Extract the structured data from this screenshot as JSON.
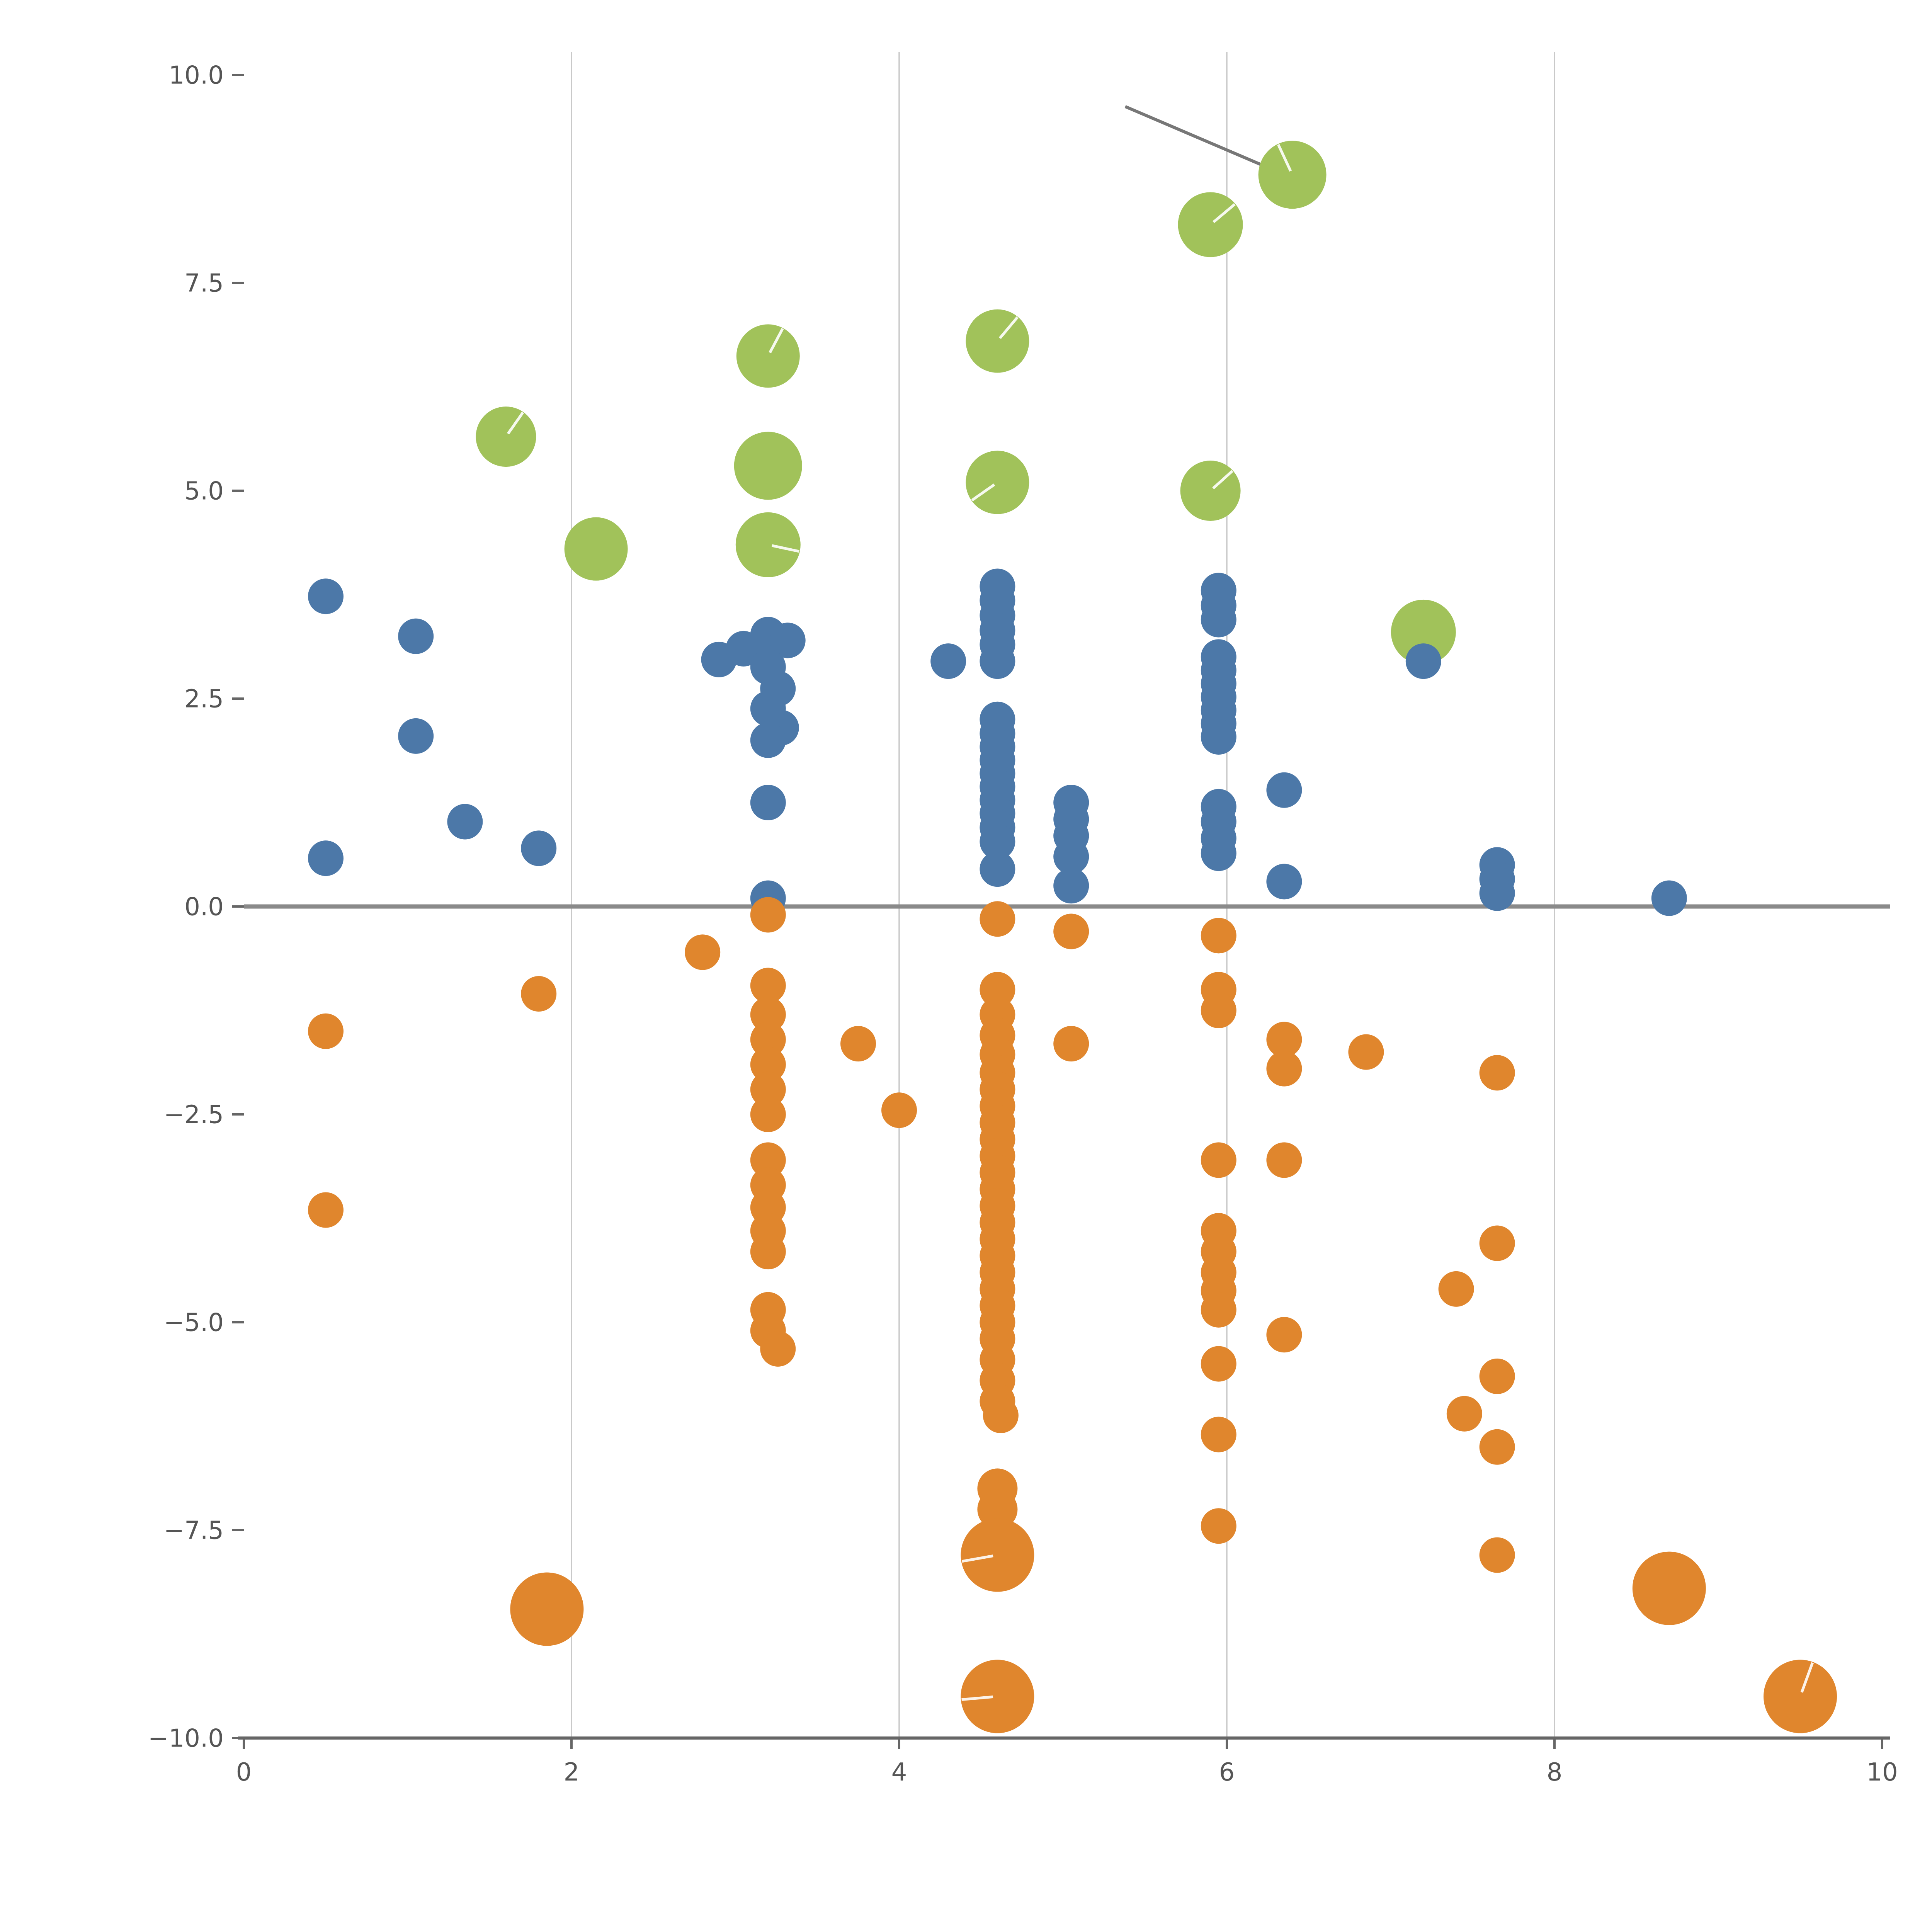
{
  "page": {
    "background": "#ffffff"
  },
  "chart_data": {
    "type": "scatter",
    "title": "",
    "xlabel": "",
    "ylabel": "",
    "xlim": [
      0,
      10
    ],
    "ylim": [
      -10,
      10
    ],
    "grid": "vertical-only",
    "legend": "none",
    "grid_x": [
      2,
      4,
      6,
      8
    ],
    "grid_color": "#c9c9c9",
    "axis_color": "#666666",
    "label_color": "#555555",
    "zero_line": {
      "y": 0,
      "color": "#8a8a8a"
    },
    "annotation_line": {
      "x1": 5.38,
      "y1": 9.62,
      "x2": 6.33,
      "y2": 8.82,
      "color": "#777777"
    },
    "x_ticks": [
      {
        "value": 0,
        "label": "0"
      },
      {
        "value": 2,
        "label": "2"
      },
      {
        "value": 4,
        "label": "4"
      },
      {
        "value": 6,
        "label": "6"
      },
      {
        "value": 8,
        "label": "8"
      },
      {
        "value": 10,
        "label": "10"
      }
    ],
    "y_ticks": [
      {
        "value": -10,
        "label": "−10.0"
      },
      {
        "value": -7.5,
        "label": "−7.5"
      },
      {
        "value": -5,
        "label": "−5.0"
      },
      {
        "value": -2.5,
        "label": "−2.5"
      },
      {
        "value": 0,
        "label": "0.0"
      },
      {
        "value": 2.5,
        "label": "2.5"
      },
      {
        "value": 5,
        "label": "5.0"
      },
      {
        "value": 7.5,
        "label": "7.5"
      },
      {
        "value": 10,
        "label": "10.0"
      }
    ],
    "series": [
      {
        "name": "green",
        "color": "#a1c25a",
        "default_r": 82,
        "points": [
          [
            6.4,
            8.8,
            88,
            115
          ],
          [
            5.9,
            8.2,
            84,
            40
          ],
          [
            4.6,
            6.8,
            82,
            50
          ],
          [
            3.2,
            6.62,
            82,
            62
          ],
          [
            1.6,
            5.65,
            78,
            55
          ],
          [
            3.2,
            5.3,
            88
          ],
          [
            4.6,
            5.1,
            82,
            215
          ],
          [
            5.9,
            5.0,
            78,
            42
          ],
          [
            2.15,
            4.3,
            82
          ],
          [
            3.2,
            4.35,
            84,
            -12
          ],
          [
            7.2,
            3.3,
            84
          ]
        ]
      },
      {
        "name": "blue",
        "color": "#4c78a8",
        "default_r": 46,
        "points": [
          [
            0.5,
            3.73
          ],
          [
            1.05,
            3.25
          ],
          [
            1.05,
            2.05
          ],
          [
            1.35,
            1.02
          ],
          [
            0.5,
            0.58
          ],
          [
            1.8,
            0.7
          ],
          [
            2.9,
            2.97
          ],
          [
            3.05,
            3.1
          ],
          [
            3.2,
            3.27
          ],
          [
            3.32,
            3.2
          ],
          [
            3.2,
            2.88
          ],
          [
            3.26,
            2.62
          ],
          [
            3.2,
            2.38
          ],
          [
            3.28,
            2.15
          ],
          [
            3.2,
            2.0
          ],
          [
            3.2,
            1.25
          ],
          [
            3.2,
            0.1
          ],
          [
            4.3,
            2.95
          ],
          [
            4.6,
            3.85
          ],
          [
            4.6,
            3.68
          ],
          [
            4.6,
            3.5
          ],
          [
            4.6,
            3.32
          ],
          [
            4.6,
            3.15
          ],
          [
            4.6,
            2.95
          ],
          [
            4.6,
            2.25
          ],
          [
            4.6,
            2.08
          ],
          [
            4.6,
            1.92
          ],
          [
            4.6,
            1.76
          ],
          [
            4.6,
            1.6
          ],
          [
            4.6,
            1.44
          ],
          [
            4.6,
            1.28
          ],
          [
            4.6,
            1.12
          ],
          [
            4.6,
            0.95
          ],
          [
            4.6,
            0.78
          ],
          [
            4.6,
            0.45
          ],
          [
            5.05,
            1.25
          ],
          [
            5.05,
            1.05
          ],
          [
            5.05,
            0.85
          ],
          [
            5.05,
            0.6
          ],
          [
            5.05,
            0.25
          ],
          [
            5.95,
            3.8
          ],
          [
            5.95,
            3.62
          ],
          [
            5.95,
            3.45
          ],
          [
            5.95,
            3.0
          ],
          [
            5.95,
            2.84
          ],
          [
            5.95,
            2.68
          ],
          [
            5.95,
            2.52
          ],
          [
            5.95,
            2.36
          ],
          [
            5.95,
            2.2
          ],
          [
            5.95,
            2.04
          ],
          [
            5.95,
            1.2
          ],
          [
            5.95,
            1.02
          ],
          [
            5.95,
            0.82
          ],
          [
            5.95,
            0.64
          ],
          [
            6.35,
            1.4
          ],
          [
            6.35,
            0.3
          ],
          [
            7.2,
            2.95
          ],
          [
            7.65,
            0.5
          ],
          [
            7.65,
            0.33
          ],
          [
            7.65,
            0.16
          ],
          [
            8.7,
            0.1
          ]
        ]
      },
      {
        "name": "orange",
        "color": "#e0862d",
        "default_r": 46,
        "points": [
          [
            0.5,
            -1.5
          ],
          [
            0.5,
            -3.65
          ],
          [
            1.8,
            -1.05
          ],
          [
            2.8,
            -0.55
          ],
          [
            3.2,
            -0.1
          ],
          [
            3.2,
            -0.95
          ],
          [
            3.2,
            -1.3
          ],
          [
            3.2,
            -1.6
          ],
          [
            3.2,
            -1.9
          ],
          [
            3.2,
            -2.2
          ],
          [
            3.2,
            -2.5
          ],
          [
            3.2,
            -3.05
          ],
          [
            3.2,
            -3.35
          ],
          [
            3.2,
            -3.62
          ],
          [
            3.2,
            -3.9
          ],
          [
            3.2,
            -4.15
          ],
          [
            3.2,
            -4.85
          ],
          [
            3.2,
            -5.1
          ],
          [
            3.26,
            -5.32
          ],
          [
            3.75,
            -1.65
          ],
          [
            4.0,
            -2.45
          ],
          [
            4.6,
            -0.15
          ],
          [
            4.6,
            -1.0
          ],
          [
            4.6,
            -1.3
          ],
          [
            4.6,
            -1.55
          ],
          [
            4.6,
            -1.78
          ],
          [
            4.6,
            -2.0
          ],
          [
            4.6,
            -2.2
          ],
          [
            4.6,
            -2.4
          ],
          [
            4.6,
            -2.6
          ],
          [
            4.6,
            -2.8
          ],
          [
            4.6,
            -3.0
          ],
          [
            4.6,
            -3.2
          ],
          [
            4.6,
            -3.4
          ],
          [
            4.6,
            -3.6
          ],
          [
            4.6,
            -3.8
          ],
          [
            4.6,
            -4.0
          ],
          [
            4.6,
            -4.2
          ],
          [
            4.6,
            -4.4
          ],
          [
            4.6,
            -4.6
          ],
          [
            4.6,
            -4.8
          ],
          [
            4.6,
            -5.0
          ],
          [
            4.6,
            -5.2
          ],
          [
            4.6,
            -5.45
          ],
          [
            4.6,
            -5.7
          ],
          [
            4.6,
            -5.95
          ],
          [
            4.62,
            -6.12
          ],
          [
            4.6,
            -7.0,
            52
          ],
          [
            4.6,
            -7.25,
            52
          ],
          [
            4.6,
            -7.8,
            95,
            190
          ],
          [
            4.6,
            -9.5,
            95,
            185
          ],
          [
            5.05,
            -0.3
          ],
          [
            5.05,
            -1.65
          ],
          [
            5.95,
            -0.35
          ],
          [
            5.95,
            -1.0
          ],
          [
            5.95,
            -1.25
          ],
          [
            5.95,
            -3.05
          ],
          [
            5.95,
            -3.9
          ],
          [
            5.95,
            -4.15
          ],
          [
            5.95,
            -4.4
          ],
          [
            5.95,
            -4.62
          ],
          [
            5.95,
            -4.85
          ],
          [
            5.95,
            -5.5
          ],
          [
            5.95,
            -6.35
          ],
          [
            5.95,
            -7.45
          ],
          [
            6.35,
            -1.6
          ],
          [
            6.35,
            -1.95
          ],
          [
            6.35,
            -3.05
          ],
          [
            6.35,
            -5.15
          ],
          [
            6.85,
            -1.75
          ],
          [
            7.4,
            -4.6
          ],
          [
            7.45,
            -6.1
          ],
          [
            7.65,
            -2.0
          ],
          [
            7.65,
            -4.05
          ],
          [
            7.65,
            -5.65
          ],
          [
            7.65,
            -6.5
          ],
          [
            7.65,
            -7.8
          ],
          [
            1.85,
            -8.45,
            95
          ],
          [
            8.7,
            -8.2,
            95
          ],
          [
            9.5,
            -9.5,
            95,
            70
          ]
        ]
      }
    ]
  }
}
